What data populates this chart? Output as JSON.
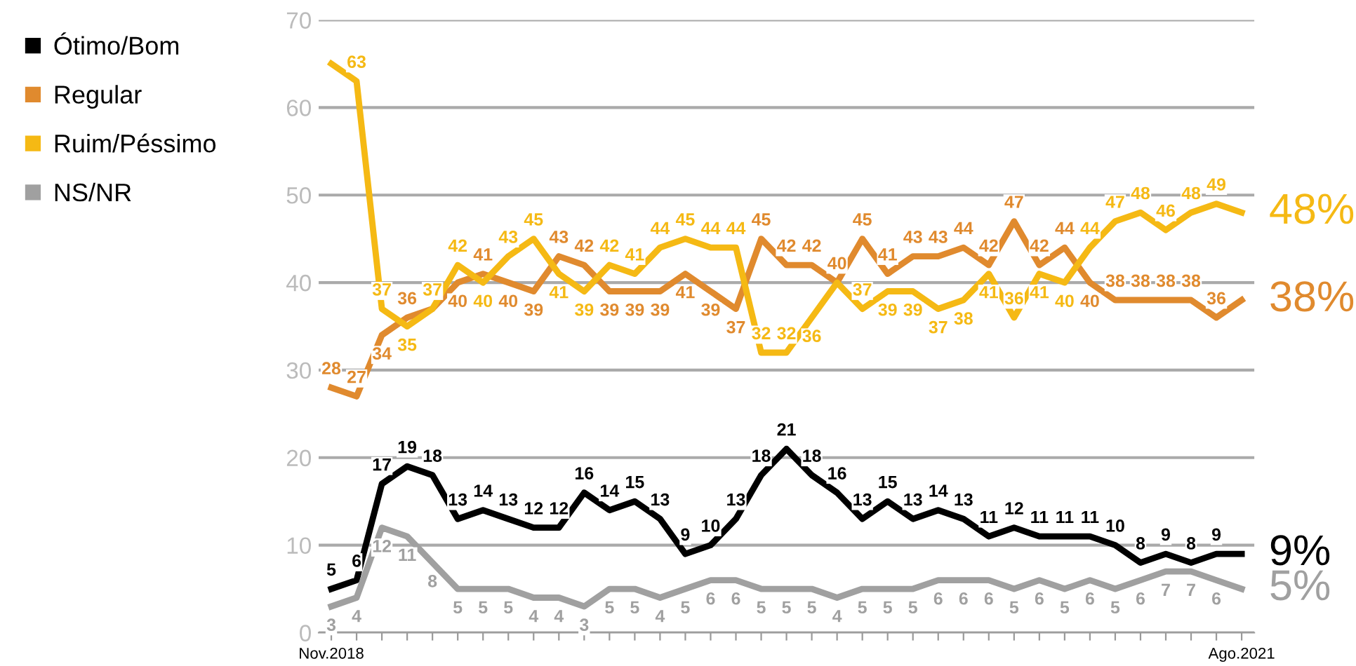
{
  "chart_data": {
    "type": "line",
    "categories": [
      "Nov.2018",
      null,
      null,
      null,
      null,
      null,
      null,
      null,
      null,
      null,
      null,
      null,
      null,
      null,
      null,
      null,
      null,
      null,
      null,
      null,
      null,
      null,
      null,
      null,
      null,
      null,
      null,
      null,
      null,
      null,
      null,
      null,
      null,
      null,
      null,
      null,
      "Ago.2021"
    ],
    "series": [
      {
        "name": "Ótimo/Bom",
        "color": "#000000",
        "values": [
          5,
          6,
          17,
          19,
          18,
          13,
          14,
          13,
          12,
          12,
          16,
          14,
          15,
          13,
          9,
          10,
          13,
          18,
          21,
          18,
          16,
          13,
          15,
          13,
          14,
          13,
          11,
          12,
          11,
          11,
          11,
          10,
          8,
          9,
          8,
          9,
          9
        ],
        "value_labels": [
          "5",
          "6",
          "17",
          "19",
          "18",
          "13",
          "14",
          "13",
          "12",
          "12",
          "16",
          "14",
          "15",
          "13",
          "9",
          "10",
          "13",
          "18",
          "21",
          "18",
          "16",
          "13",
          "15",
          "13",
          "14",
          "13",
          "11",
          "12",
          "11",
          "11",
          "11",
          "10",
          "8",
          "9",
          "8",
          "9",
          null
        ]
      },
      {
        "name": "Regular",
        "color": "#e08a2e",
        "values": [
          28,
          27,
          34,
          36,
          37,
          40,
          41,
          40,
          39,
          43,
          42,
          39,
          39,
          39,
          41,
          39,
          37,
          45,
          42,
          42,
          40,
          45,
          41,
          43,
          43,
          44,
          42,
          47,
          42,
          44,
          40,
          38,
          38,
          38,
          38,
          36,
          38
        ],
        "value_labels": [
          "28",
          "27",
          "34",
          "36",
          null,
          "40",
          "41",
          "40",
          "39",
          "43",
          "42",
          "39",
          "39",
          "39",
          "41",
          "39",
          "37",
          "45",
          "42",
          "42",
          "40",
          "45",
          "41",
          "43",
          "43",
          "44",
          "42",
          "47",
          "42",
          "44",
          "40",
          "38",
          "38",
          "38",
          "38",
          "36",
          null
        ]
      },
      {
        "name": "Ruim/Péssimo",
        "color": "#f5b914",
        "values": [
          65,
          63,
          37,
          35,
          37,
          42,
          40,
          43,
          45,
          41,
          39,
          42,
          41,
          44,
          45,
          44,
          44,
          32,
          32,
          36,
          40,
          37,
          39,
          39,
          37,
          38,
          41,
          36,
          41,
          40,
          44,
          47,
          48,
          46,
          48,
          49,
          48
        ],
        "value_labels": [
          null,
          "63",
          "37",
          "35",
          "37",
          "42",
          "40",
          "43",
          "45",
          "41",
          "39",
          "42",
          "41",
          "44",
          "45",
          "44",
          "44",
          "32",
          "32",
          "36",
          null,
          "37",
          "39",
          "39",
          "37",
          "38",
          "41",
          "36",
          "41",
          "40",
          "44",
          "47",
          "48",
          "46",
          "48",
          "49",
          null
        ]
      },
      {
        "name": "NS/NR",
        "color": "#a0a0a0",
        "values": [
          3,
          4,
          12,
          11,
          8,
          5,
          5,
          5,
          4,
          4,
          3,
          5,
          5,
          4,
          5,
          6,
          6,
          5,
          5,
          5,
          4,
          5,
          5,
          5,
          6,
          6,
          6,
          5,
          6,
          5,
          6,
          5,
          6,
          7,
          7,
          6,
          5
        ],
        "value_labels": [
          "3",
          "4",
          "12",
          "11",
          "8",
          "5",
          "5",
          "5",
          "4",
          "4",
          "3",
          "5",
          "5",
          "4",
          "5",
          "6",
          "6",
          "5",
          "5",
          "5",
          "4",
          "5",
          "5",
          "5",
          "6",
          "6",
          "6",
          "5",
          "6",
          "5",
          "6",
          "5",
          "6",
          "7",
          "7",
          "6",
          null
        ]
      }
    ],
    "ylim": [
      0,
      70
    ],
    "yticks": [
      0,
      10,
      20,
      30,
      40,
      50,
      60,
      70
    ],
    "grid": "y",
    "legend": "left",
    "marker": "none",
    "line_style": "solid",
    "annotations": [
      {
        "text": "48%",
        "x": "Ago.2021",
        "y": 48
      },
      {
        "text": "38%",
        "x": "Ago.2021",
        "y": 38
      },
      {
        "text": "9%",
        "x": "Ago.2021",
        "y": 9
      },
      {
        "text": "5%",
        "x": "Ago.2021",
        "y": 5
      }
    ]
  }
}
